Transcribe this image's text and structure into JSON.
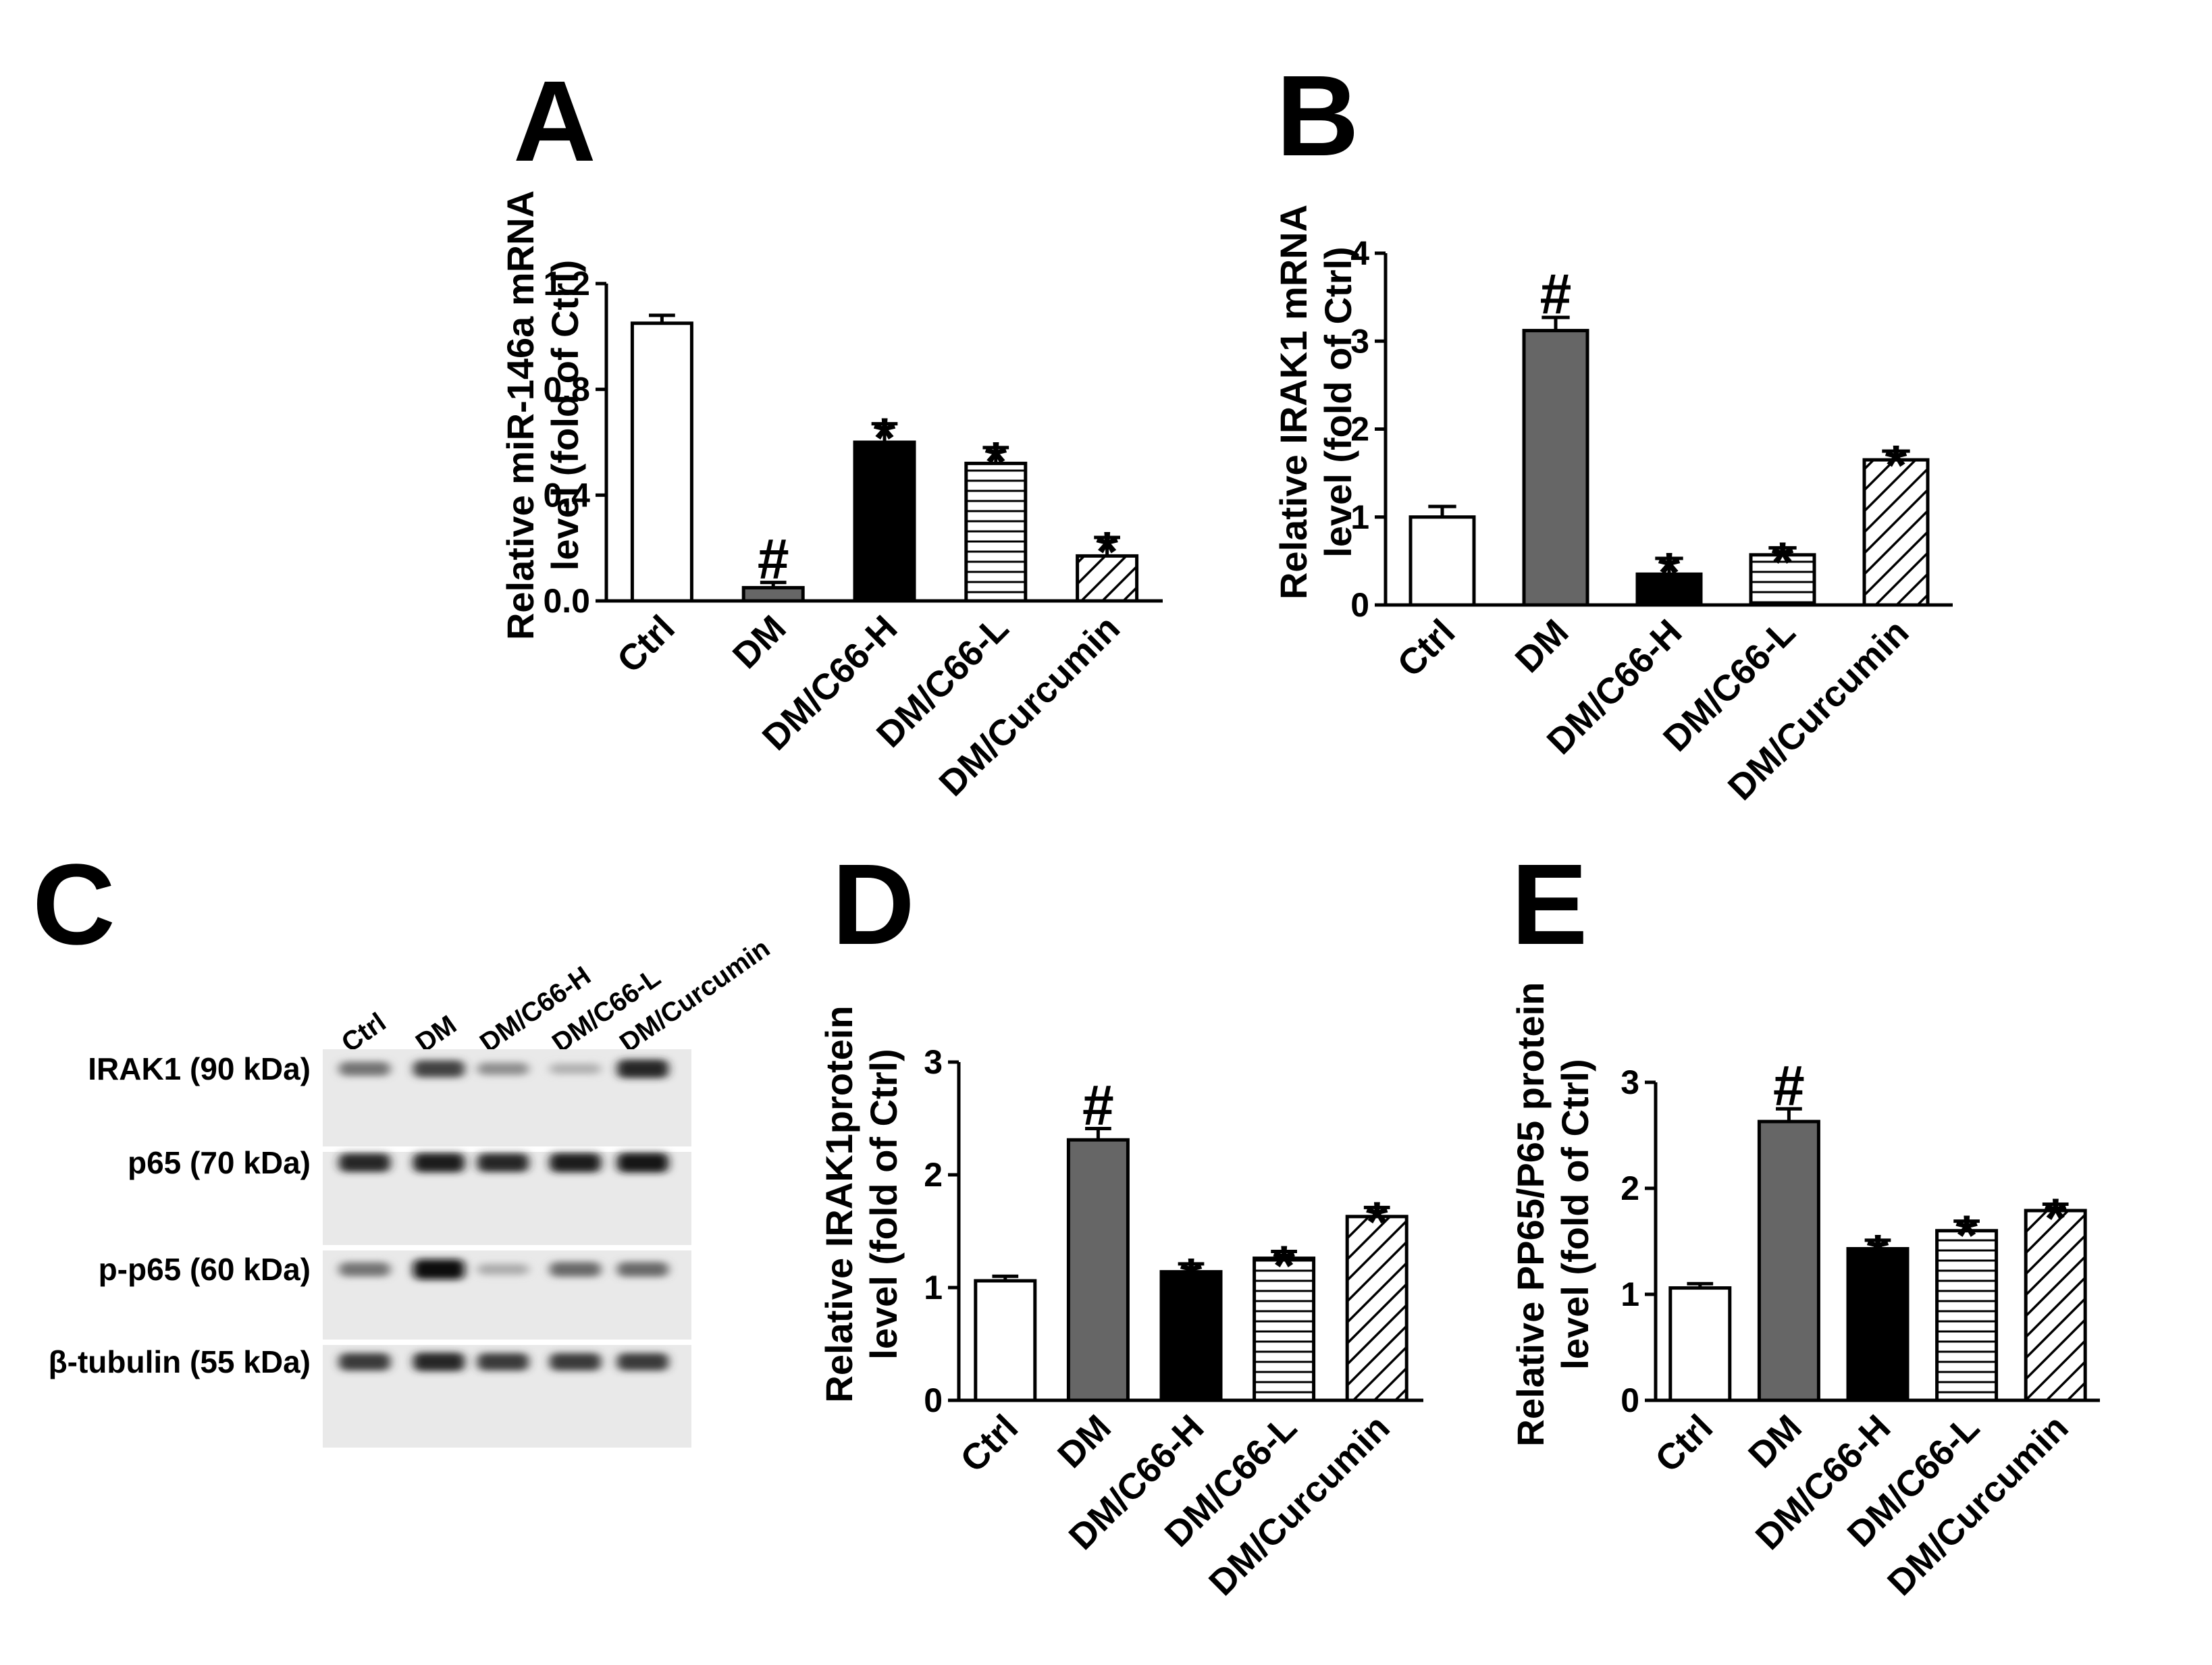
{
  "chart_data": [
    {
      "panel": "A",
      "type": "bar",
      "ylabel": [
        "Relative miR-146a mRNA",
        "level (fold of Ctrl)"
      ],
      "xlabel": "",
      "categories": [
        "Ctrl",
        "DM",
        "DM/C66-H",
        "DM/C66-L",
        "DM/Curcumin"
      ],
      "values": [
        1.05,
        0.05,
        0.6,
        0.52,
        0.17
      ],
      "errors": [
        0.03,
        0.02,
        0.07,
        0.06,
        0.07
      ],
      "significance": [
        "",
        "#",
        "*",
        "*",
        "*"
      ],
      "ylim": [
        0,
        1.2
      ],
      "yticks": [
        "0.0",
        "0.4",
        "0.8",
        "1.2"
      ],
      "grid": false,
      "fills": [
        "white",
        "#666666",
        "#000000",
        "horizontal-lines",
        "diagonal-hatch"
      ]
    },
    {
      "panel": "B",
      "type": "bar",
      "ylabel": [
        "Relative IRAK1 mRNA",
        "level (fold of Ctrl)"
      ],
      "xlabel": "",
      "categories": [
        "Ctrl",
        "DM",
        "DM/C66-H",
        "DM/C66-L",
        "DM/Curcumin"
      ],
      "values": [
        1.0,
        3.12,
        0.35,
        0.57,
        1.65
      ],
      "errors": [
        0.12,
        0.15,
        0.18,
        0.08,
        0.1
      ],
      "significance": [
        "",
        "#",
        "*",
        "*",
        "*"
      ],
      "ylim": [
        0,
        4
      ],
      "yticks": [
        "0",
        "1",
        "2",
        "3",
        "4"
      ],
      "grid": false,
      "fills": [
        "white",
        "#666666",
        "#000000",
        "horizontal-lines",
        "diagonal-hatch"
      ]
    },
    {
      "panel": "D",
      "type": "bar",
      "ylabel": [
        "Relative IRAK1protein",
        "level (fold of Ctrl)"
      ],
      "xlabel": "",
      "categories": [
        "Ctrl",
        "DM",
        "DM/C66-H",
        "DM/C66-L",
        "DM/Curcumin"
      ],
      "values": [
        1.06,
        2.31,
        1.14,
        1.26,
        1.63
      ],
      "errors": [
        0.04,
        0.1,
        0.07,
        0.06,
        0.08
      ],
      "significance": [
        "",
        "#",
        "*",
        "*",
        "*"
      ],
      "ylim": [
        0,
        3
      ],
      "yticks": [
        "0",
        "1",
        "2",
        "3"
      ],
      "grid": false,
      "fills": [
        "white",
        "#666666",
        "#000000",
        "horizontal-lines",
        "diagonal-hatch"
      ]
    },
    {
      "panel": "E",
      "type": "bar",
      "ylabel": [
        "Relative PP65/P65 protein",
        "level (fold of Ctrl)"
      ],
      "xlabel": "",
      "categories": [
        "Ctrl",
        "DM",
        "DM/C66-H",
        "DM/C66-L",
        "DM/Curcumin"
      ],
      "values": [
        1.06,
        2.63,
        1.43,
        1.6,
        1.79
      ],
      "errors": [
        0.04,
        0.12,
        0.08,
        0.09,
        0.06
      ],
      "significance": [
        "",
        "#",
        "*",
        "*",
        "*"
      ],
      "ylim": [
        0,
        3
      ],
      "yticks": [
        "0",
        "1",
        "2",
        "3"
      ],
      "grid": false,
      "fills": [
        "white",
        "#666666",
        "#000000",
        "horizontal-lines",
        "diagonal-hatch"
      ]
    }
  ],
  "western_blot": {
    "panel": "C",
    "lanes": [
      "Ctrl",
      "DM",
      "DM/C66-H",
      "DM/C66-L",
      "DM/Curcumin"
    ],
    "rows": [
      {
        "label": "IRAK1 (90 kDa)",
        "intensity": [
          0.45,
          0.7,
          0.3,
          0.12,
          0.85
        ]
      },
      {
        "label": "p65 (70 kDa)",
        "intensity": [
          0.85,
          0.9,
          0.85,
          0.9,
          0.95
        ]
      },
      {
        "label": "p-p65 (60 kDa)",
        "intensity": [
          0.45,
          1.0,
          0.15,
          0.5,
          0.5
        ]
      },
      {
        "label": "β-tubulin (55 kDa)",
        "intensity": [
          0.75,
          0.85,
          0.75,
          0.75,
          0.75
        ]
      }
    ]
  }
}
